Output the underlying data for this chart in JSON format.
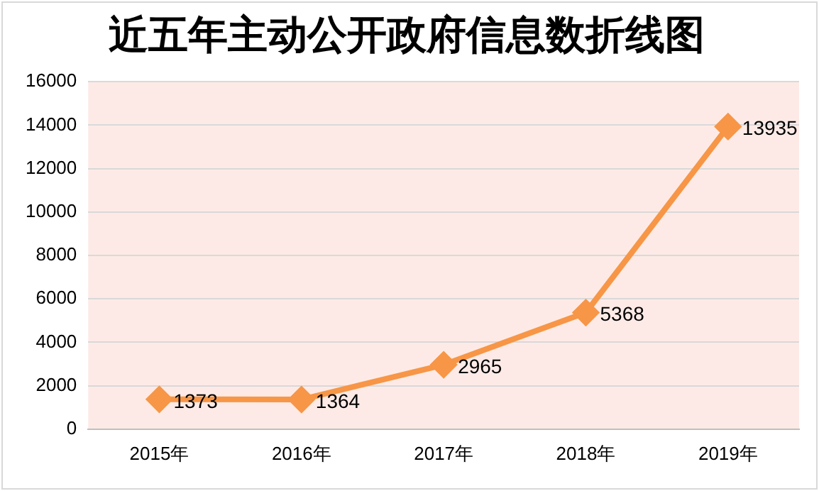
{
  "chart_data": {
    "type": "line",
    "title": "近五年主动公开政府信息数折线图",
    "categories": [
      "2015年",
      "2016年",
      "2017年",
      "2018年",
      "2019年"
    ],
    "series": [
      {
        "color": "#f79646",
        "values": [
          1373,
          1364,
          2965,
          5368,
          13935
        ]
      }
    ],
    "ylim": [
      0,
      16000
    ],
    "yticks": [
      0,
      2000,
      4000,
      6000,
      8000,
      10000,
      12000,
      14000,
      16000
    ],
    "grid": "y",
    "legend": false,
    "marker": "diamond",
    "line_style": "solid",
    "data_labels": true
  }
}
